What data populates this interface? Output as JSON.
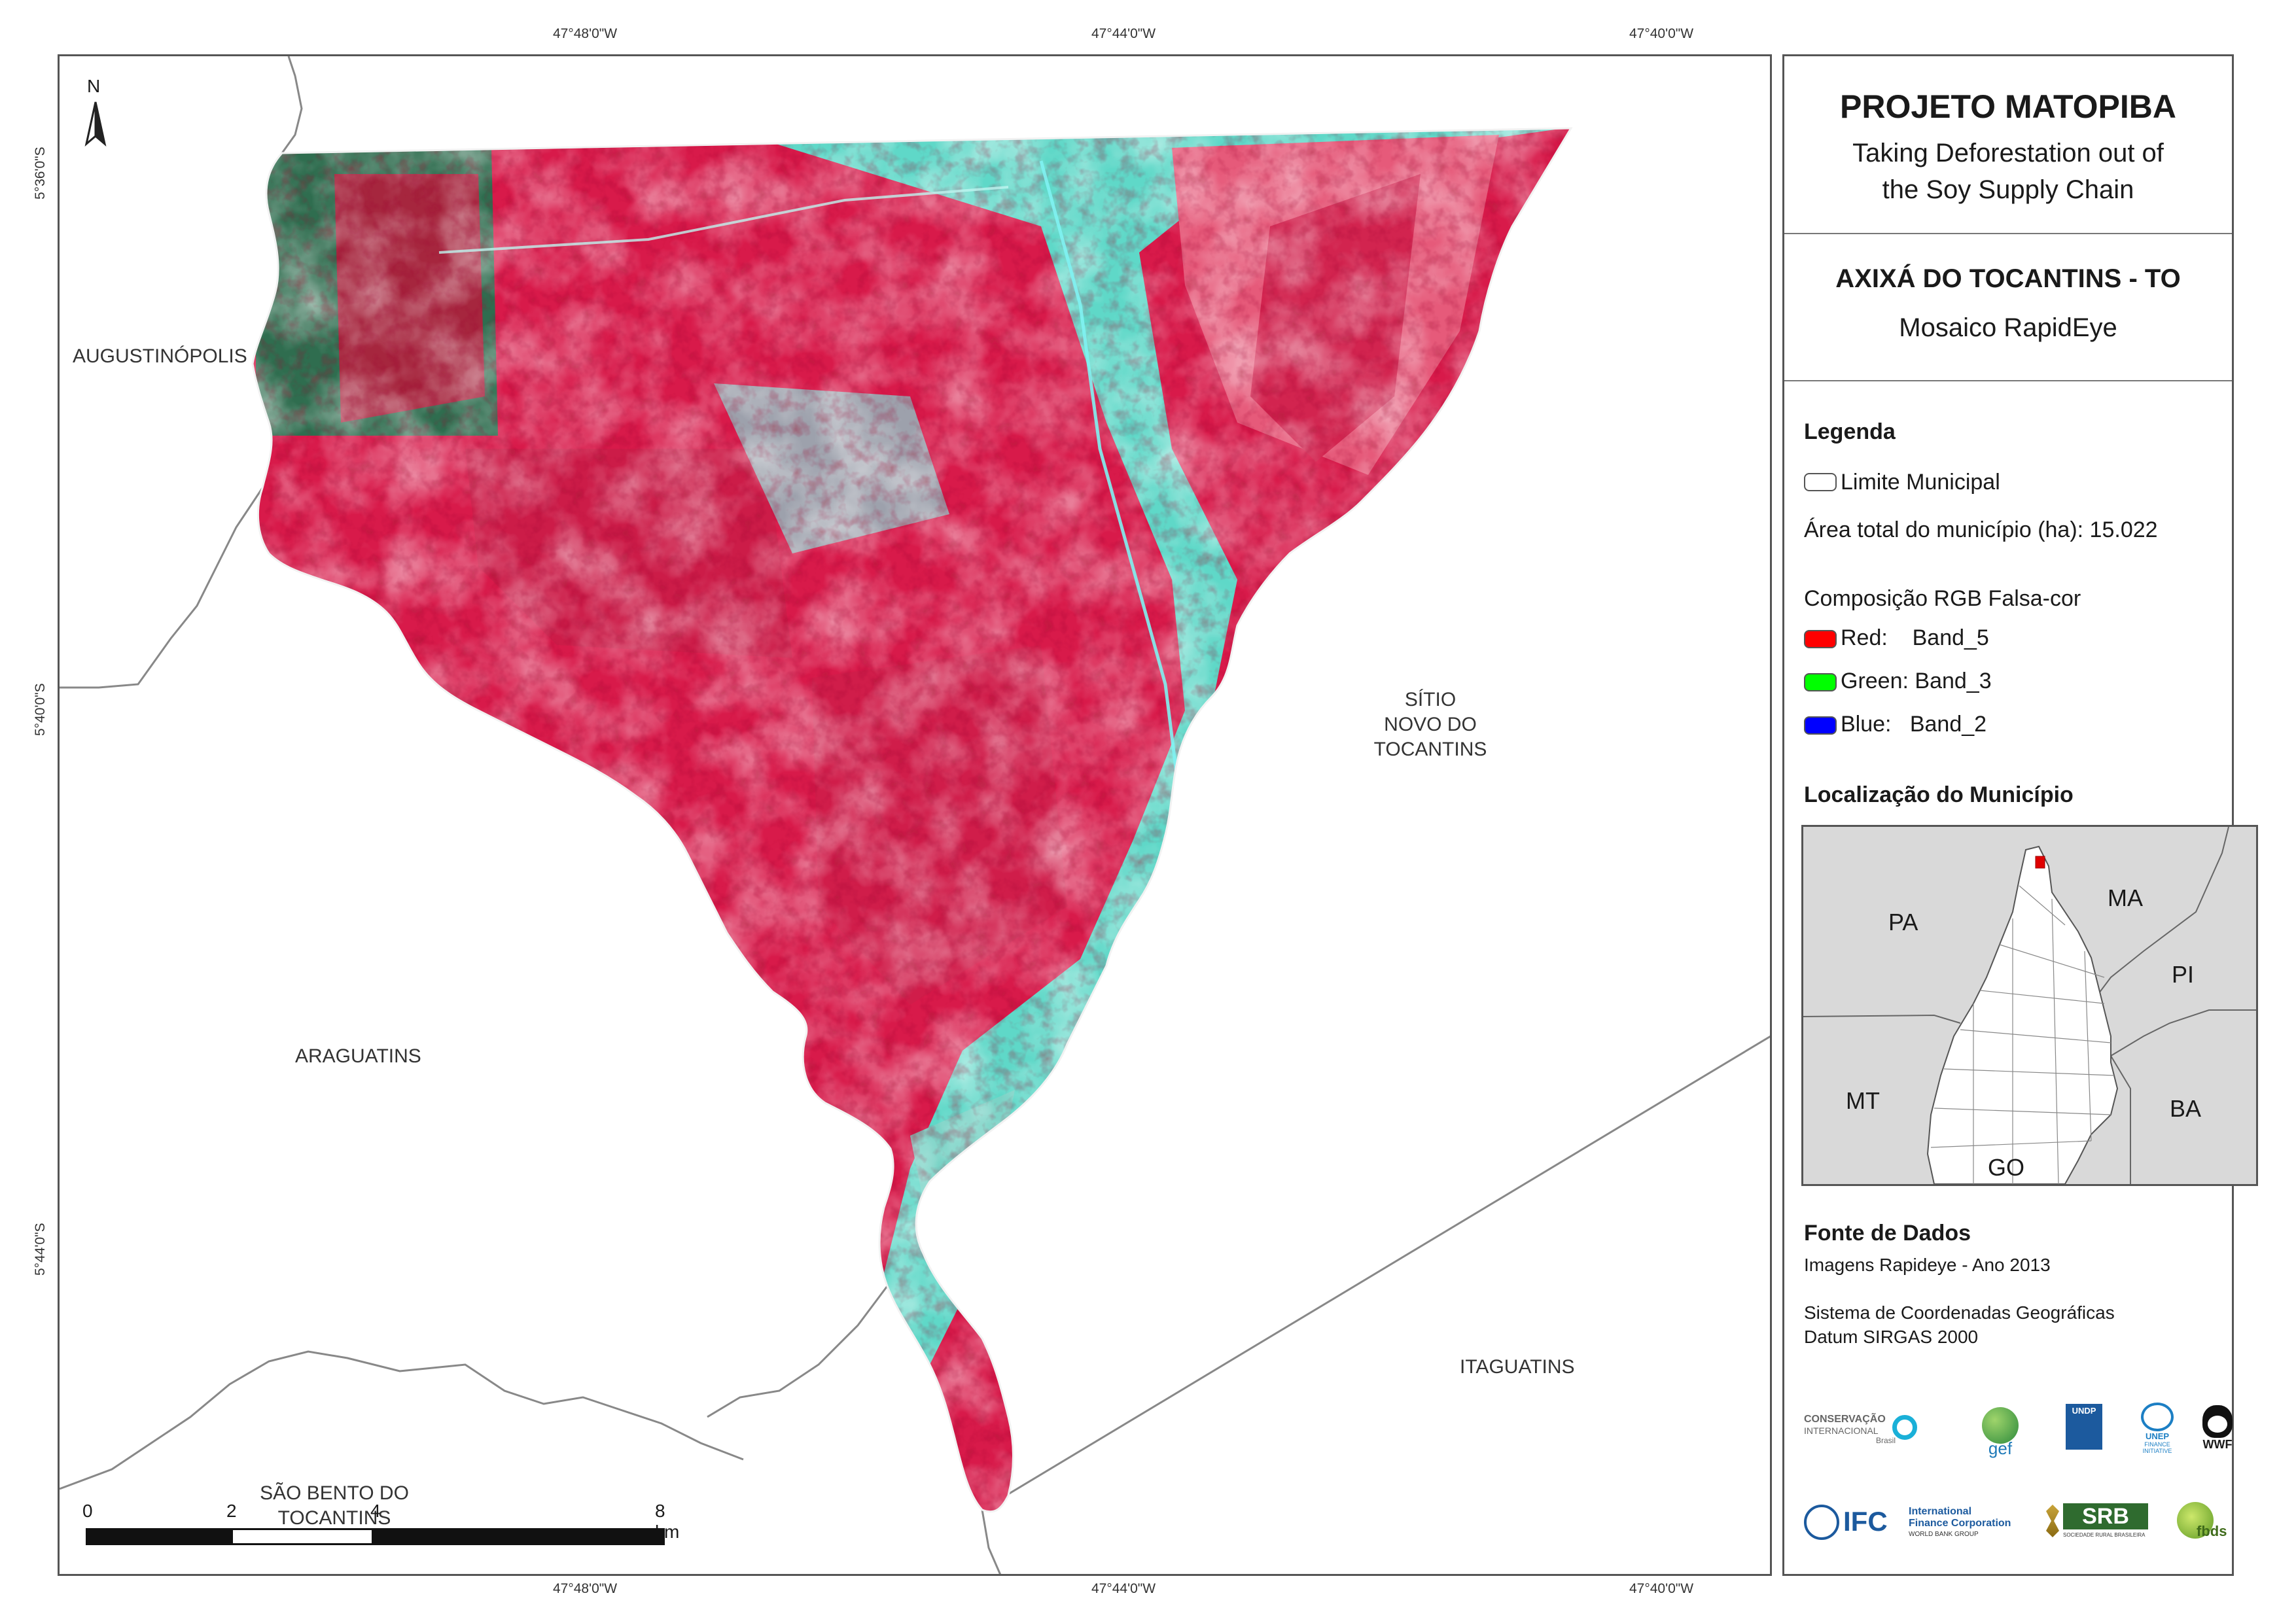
{
  "grid": {
    "top_lon": [
      "47°48'0\"W",
      "47°44'0\"W",
      "47°40'0\"W"
    ],
    "bottom_lon": [
      "47°48'0\"W",
      "47°44'0\"W",
      "47°40'0\"W"
    ],
    "left_lat": [
      "5°36'0\"S",
      "5°40'0\"S",
      "5°44'0\"S"
    ]
  },
  "north_arrow": {
    "label": "N"
  },
  "places": {
    "augustinopolis": "AUGUSTINÓPOLIS",
    "sitio_line1": "SÍTIO",
    "sitio_line2": "NOVO DO",
    "sitio_line3": "TOCANTINS",
    "araguatins": "ARAGUATINS",
    "sao_bento_line1": "SÃO BENTO DO",
    "sao_bento_line2": "TOCANTINS",
    "itaguatins": "ITAGUATINS"
  },
  "scale": {
    "labels": [
      "0",
      "2",
      "4",
      "8 km"
    ]
  },
  "panel": {
    "title": "PROJETO MATOPIBA",
    "subtitle_line1": "Taking Deforestation out of",
    "subtitle_line2": "the Soy Supply Chain",
    "municipio": "AXIXÁ DO TOCANTINS - TO",
    "mosaico": "Mosaico RapidEye",
    "legenda": "Legenda",
    "limite": "Limite Municipal",
    "area": "Área total do município (ha): 15.022",
    "composicao": "Composição RGB Falsa-cor",
    "bands": [
      {
        "label": "Red:    Band_5",
        "color": "#ff0000"
      },
      {
        "label": "Green: Band_3",
        "color": "#00ff00"
      },
      {
        "label": "Blue:   Band_2",
        "color": "#0000ff"
      }
    ],
    "localizacao": "Localização do Município",
    "inset": {
      "pa": "PA",
      "ma": "MA",
      "pi": "PI",
      "mt": "MT",
      "ba": "BA",
      "go": "GO"
    },
    "fonte": "Fonte de Dados",
    "imagens": "Imagens Rapideye - Ano 2013",
    "sistema": "Sistema de Coordenadas Geográficas",
    "datum": "Datum SIRGAS 2000"
  },
  "logos": {
    "ci_line1": "CONSERVAÇÃO",
    "ci_line2": "INTERNACIONAL",
    "ci_line3": "Brasil",
    "gef": "gef",
    "undp": "UNDP",
    "unep_line1": "UNEP",
    "unep_line2": "FINANCE",
    "unep_line3": "INITIATIVE",
    "wwf": "WWF",
    "ifc": "IFC",
    "ifc_line1": "International",
    "ifc_line2": "Finance Corporation",
    "ifc_line3": "WORLD BANK GROUP",
    "srb": "SRB",
    "srb_sub": "SOCIEDADE RURAL BRASILEIRA",
    "fbds": "fbds"
  }
}
